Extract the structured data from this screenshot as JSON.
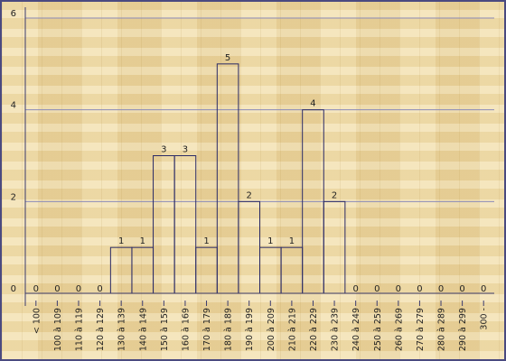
{
  "chart_data": {
    "type": "bar",
    "categories": [
      "< 100",
      "100 à 109",
      "110 à 119",
      "120 à 129",
      "130 à 139",
      "140 à 149",
      "150 à 159",
      "160 à 169",
      "170 à 179",
      "180 à 189",
      "190 à 199",
      "200 à 209",
      "210 à 219",
      "220 à 229",
      "230 à 239",
      "240 à 249",
      "250 à 259",
      "260 à 269",
      "270 à 279",
      "280 à 289",
      "290 à 299",
      "300 -"
    ],
    "values": [
      0,
      0,
      0,
      0,
      1,
      1,
      3,
      3,
      1,
      5,
      2,
      1,
      1,
      4,
      2,
      0,
      0,
      0,
      0,
      0,
      0,
      0
    ],
    "ylim": [
      0,
      6
    ],
    "y_ticks": [
      0,
      2,
      4,
      6
    ],
    "grid": true,
    "title": "",
    "xlabel": "",
    "ylabel": ""
  },
  "colors": {
    "background": "#efdba8",
    "bar_stroke": "#2a2a66",
    "grid": "#8a8ab8"
  }
}
